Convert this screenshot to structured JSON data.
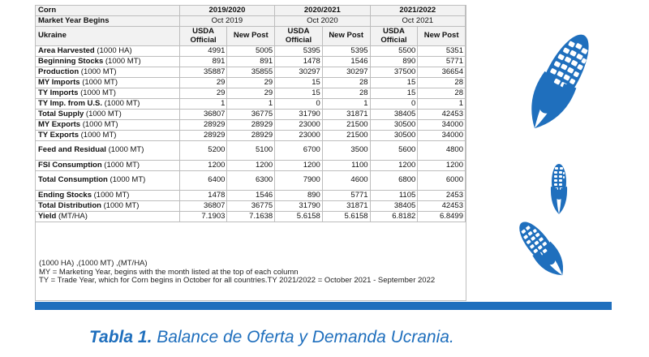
{
  "header": {
    "corn": "Corn",
    "market_year_begins": "Market Year Begins",
    "country": "Ukraine",
    "years": [
      {
        "label": "2019/2020",
        "begins": "Oct 2019"
      },
      {
        "label": "2020/2021",
        "begins": "Oct 2020"
      },
      {
        "label": "2021/2022",
        "begins": "Oct 2021"
      }
    ],
    "col_usda_line1": "USDA",
    "col_usda_line2": "Official",
    "col_post": "New Post"
  },
  "rows": [
    {
      "name": "Area Harvested",
      "unit": " (1000 HA)",
      "values": [
        "4991",
        "5005",
        "5395",
        "5395",
        "5500",
        "5351"
      ]
    },
    {
      "name": "Beginning Stocks",
      "unit": " (1000 MT)",
      "values": [
        "891",
        "891",
        "1478",
        "1546",
        "890",
        "5771"
      ]
    },
    {
      "name": "Production",
      "unit": " (1000 MT)",
      "values": [
        "35887",
        "35855",
        "30297",
        "30297",
        "37500",
        "36654"
      ]
    },
    {
      "name": "MY Imports",
      "unit": " (1000 MT)",
      "values": [
        "29",
        "29",
        "15",
        "28",
        "15",
        "28"
      ]
    },
    {
      "name": "TY Imports",
      "unit": " (1000 MT)",
      "values": [
        "29",
        "29",
        "15",
        "28",
        "15",
        "28"
      ]
    },
    {
      "name": "TY Imp. from U.S.",
      "unit": " (1000 MT)",
      "values": [
        "1",
        "1",
        "0",
        "1",
        "0",
        "1"
      ]
    },
    {
      "name": "Total Supply",
      "unit": " (1000 MT)",
      "values": [
        "36807",
        "36775",
        "31790",
        "31871",
        "38405",
        "42453"
      ]
    },
    {
      "name": "MY Exports",
      "unit": " (1000 MT)",
      "values": [
        "28929",
        "28929",
        "23000",
        "21500",
        "30500",
        "34000"
      ]
    },
    {
      "name": "TY Exports",
      "unit": " (1000 MT)",
      "values": [
        "28929",
        "28929",
        "23000",
        "21500",
        "30500",
        "34000"
      ]
    },
    {
      "name": "Feed and Residual",
      "unit": " (1000 MT)",
      "values": [
        "5200",
        "5100",
        "6700",
        "3500",
        "5600",
        "4800"
      ]
    },
    {
      "name": "FSI Consumption",
      "unit": " (1000 MT)",
      "values": [
        "1200",
        "1200",
        "1200",
        "1100",
        "1200",
        "1200"
      ]
    },
    {
      "name": "Total Consumption",
      "unit": " (1000 MT)",
      "values": [
        "6400",
        "6300",
        "7900",
        "4600",
        "6800",
        "6000"
      ]
    },
    {
      "name": "Ending Stocks",
      "unit": " (1000 MT)",
      "values": [
        "1478",
        "1546",
        "890",
        "5771",
        "1105",
        "2453"
      ]
    },
    {
      "name": "Total Distribution",
      "unit": " (1000 MT)",
      "values": [
        "36807",
        "36775",
        "31790",
        "31871",
        "38405",
        "42453"
      ]
    },
    {
      "name": "Yield",
      "unit": " (MT/HA)",
      "values": [
        "7.1903",
        "7.1638",
        "5.6158",
        "5.6158",
        "6.8182",
        "6.8499"
      ]
    }
  ],
  "notes": [
    "(1000 HA) ,(1000 MT) ,(MT/HA)",
    "MY = Marketing Year, begins with the month listed at the top of each column",
    "TY = Trade Year, which for Corn begins in October for all countries.TY 2021/2022 = October 2021 - September 2022"
  ],
  "caption": {
    "label": "Tabla 1.",
    "text": " Balance de Oferta y Demanda Ucrania."
  },
  "colors": {
    "accent": "#1f6fbd"
  },
  "icons": [
    "corn-cob-icon",
    "corn-cob-icon",
    "corn-cob-icon"
  ]
}
